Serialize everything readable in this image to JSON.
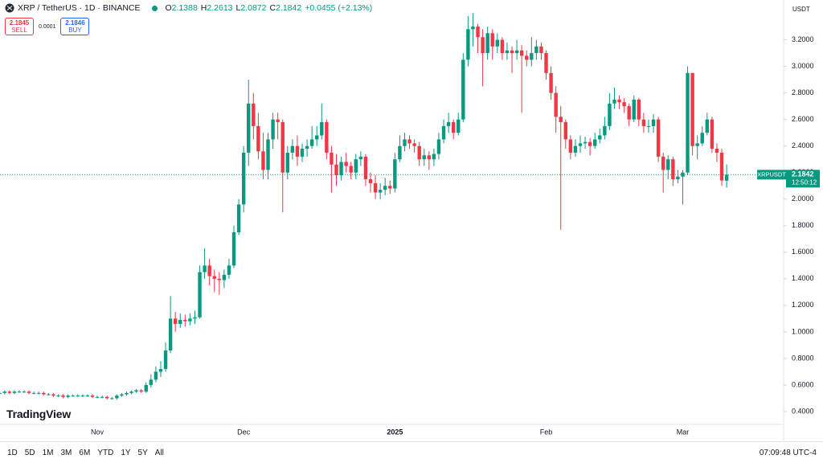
{
  "header": {
    "symbol": "XRP / TetherUS · 1D · BINANCE",
    "ohlc_labels": [
      "O",
      "H",
      "L",
      "C"
    ],
    "change": "+0.0455 (+2.13%)",
    "sell_price": 2.1845,
    "sell_label": "SELL",
    "spread": 0.0001,
    "buy_price": 2.1846,
    "buy_label": "BUY",
    "currency": "USDT"
  },
  "chart_data": {
    "type": "candlestick",
    "up_color": "#089981",
    "down_color": "#f23645",
    "categories": [
      null,
      null,
      null,
      null,
      null,
      null,
      null,
      null,
      null,
      null,
      null,
      null,
      null,
      null,
      null,
      null,
      null,
      null,
      null,
      null,
      null,
      "Nov",
      null,
      null,
      null,
      null,
      null,
      null,
      null,
      null,
      null,
      null,
      null,
      null,
      null,
      null,
      null,
      null,
      null,
      null,
      null,
      null,
      null,
      null,
      null,
      null,
      null,
      null,
      null,
      null,
      null,
      "Dec",
      null,
      null,
      null,
      null,
      null,
      null,
      null,
      null,
      null,
      null,
      null,
      null,
      null,
      null,
      null,
      null,
      null,
      null,
      null,
      null,
      null,
      null,
      null,
      null,
      null,
      null,
      null,
      null,
      null,
      null,
      "2025",
      null,
      null,
      null,
      null,
      null,
      null,
      null,
      null,
      null,
      null,
      null,
      null,
      null,
      null,
      null,
      null,
      null,
      null,
      null,
      null,
      null,
      null,
      null,
      null,
      null,
      null,
      null,
      null,
      null,
      null,
      "Feb",
      null,
      null,
      null,
      null,
      null,
      null,
      null,
      null,
      null,
      null,
      null,
      null,
      null,
      null,
      null,
      null,
      null,
      null,
      null,
      null,
      null,
      null,
      null,
      null,
      null,
      null,
      null,
      "Mar",
      null,
      null,
      null,
      null,
      null,
      null,
      null,
      null,
      null
    ],
    "open": [
      0.54,
      0.54,
      0.54,
      0.55,
      0.54,
      0.55,
      0.55,
      0.55,
      0.54,
      0.54,
      0.54,
      0.53,
      0.53,
      0.52,
      0.52,
      0.51,
      0.52,
      0.52,
      0.52,
      0.52,
      0.52,
      0.51,
      0.51,
      0.51,
      0.5,
      0.5,
      0.52,
      0.53,
      0.54,
      0.55,
      0.56,
      0.55,
      0.6,
      0.64,
      0.7,
      0.72,
      0.86,
      1.1,
      1.06,
      1.09,
      1.08,
      1.1,
      1.11,
      1.45,
      1.5,
      1.42,
      1.4,
      1.39,
      1.43,
      1.5,
      1.75,
      1.96,
      2.35,
      2.72,
      2.55,
      2.36,
      2.22,
      2.45,
      2.6,
      2.58,
      2.2,
      2.35,
      2.4,
      2.32,
      2.38,
      2.4,
      2.45,
      2.48,
      2.58,
      2.35,
      2.26,
      2.18,
      2.28,
      2.25,
      2.2,
      2.3,
      2.32,
      2.15,
      2.12,
      2.05,
      2.07,
      2.1,
      2.08,
      2.3,
      2.4,
      2.45,
      2.42,
      2.4,
      2.3,
      2.33,
      2.3,
      2.34,
      2.45,
      2.55,
      2.58,
      2.5,
      2.6,
      3.05,
      3.28,
      3.3,
      3.22,
      3.1,
      3.25,
      3.15,
      3.2,
      3.1,
      3.12,
      3.1,
      3.12,
      3.08,
      3.05,
      3.1,
      3.15,
      3.1,
      2.95,
      2.8,
      2.62,
      2.58,
      2.45,
      2.35,
      2.4,
      2.42,
      2.43,
      2.4,
      2.45,
      2.48,
      2.55,
      2.72,
      2.75,
      2.73,
      2.7,
      2.6,
      2.75,
      2.6,
      2.55,
      2.55,
      2.6,
      2.32,
      2.22,
      2.3,
      2.15,
      2.17,
      2.2,
      2.95,
      2.4,
      2.42,
      2.5,
      2.6,
      2.38,
      2.35,
      2.1388
    ],
    "high": [
      0.55,
      0.55,
      0.56,
      0.56,
      0.56,
      0.56,
      0.56,
      0.56,
      0.55,
      0.55,
      0.55,
      0.54,
      0.54,
      0.53,
      0.53,
      0.53,
      0.53,
      0.53,
      0.53,
      0.53,
      0.53,
      0.52,
      0.52,
      0.52,
      0.51,
      0.53,
      0.54,
      0.55,
      0.56,
      0.57,
      0.57,
      0.62,
      0.68,
      0.74,
      0.78,
      0.92,
      1.27,
      1.15,
      1.14,
      1.13,
      1.14,
      1.16,
      1.5,
      1.63,
      1.55,
      1.47,
      1.45,
      1.47,
      1.55,
      1.8,
      2.0,
      2.4,
      2.9,
      2.8,
      2.65,
      2.5,
      2.5,
      2.65,
      2.65,
      2.6,
      2.4,
      2.45,
      2.48,
      2.42,
      2.45,
      2.55,
      2.55,
      2.72,
      2.6,
      2.4,
      2.34,
      2.32,
      2.35,
      2.28,
      2.34,
      2.36,
      2.34,
      2.2,
      2.18,
      2.12,
      2.16,
      2.14,
      2.35,
      2.48,
      2.5,
      2.48,
      2.45,
      2.43,
      2.38,
      2.36,
      2.38,
      2.5,
      2.6,
      2.65,
      2.6,
      2.65,
      3.1,
      3.38,
      3.4,
      3.32,
      3.28,
      3.3,
      3.28,
      3.25,
      3.22,
      3.18,
      3.15,
      3.2,
      3.16,
      3.12,
      3.22,
      3.2,
      3.18,
      3.12,
      3.0,
      2.85,
      2.7,
      2.6,
      2.48,
      2.45,
      2.48,
      2.47,
      2.46,
      2.5,
      2.53,
      2.62,
      2.8,
      2.84,
      2.78,
      2.76,
      2.72,
      2.78,
      2.76,
      2.65,
      2.6,
      2.64,
      2.62,
      2.35,
      2.33,
      2.32,
      2.22,
      2.22,
      3.0,
      2.95,
      2.48,
      2.55,
      2.65,
      2.62,
      2.42,
      2.38,
      2.2613
    ],
    "low": [
      0.53,
      0.53,
      0.53,
      0.53,
      0.53,
      0.54,
      0.54,
      0.53,
      0.53,
      0.53,
      0.52,
      0.52,
      0.51,
      0.51,
      0.5,
      0.5,
      0.51,
      0.51,
      0.51,
      0.51,
      0.5,
      0.5,
      0.5,
      0.49,
      0.49,
      0.49,
      0.51,
      0.52,
      0.53,
      0.54,
      0.54,
      0.54,
      0.58,
      0.62,
      0.66,
      0.7,
      0.84,
      1.0,
      1.03,
      1.04,
      1.05,
      1.06,
      1.1,
      1.4,
      1.35,
      1.3,
      1.28,
      1.33,
      1.4,
      1.48,
      1.73,
      1.9,
      2.25,
      2.45,
      2.3,
      2.15,
      2.15,
      2.38,
      2.45,
      1.9,
      2.15,
      2.3,
      2.25,
      2.28,
      2.32,
      2.38,
      2.4,
      2.45,
      2.3,
      2.05,
      2.1,
      2.14,
      2.2,
      2.15,
      2.15,
      2.25,
      2.1,
      2.05,
      2.0,
      2.0,
      2.03,
      2.04,
      2.05,
      2.28,
      2.36,
      2.38,
      2.35,
      2.25,
      2.25,
      2.22,
      2.25,
      2.3,
      2.42,
      2.5,
      2.45,
      2.48,
      2.58,
      3.0,
      3.15,
      3.1,
      2.85,
      3.05,
      3.05,
      3.1,
      3.05,
      3.05,
      2.95,
      3.05,
      2.65,
      3.0,
      3.0,
      3.05,
      3.05,
      2.9,
      2.75,
      2.5,
      1.77,
      2.38,
      2.3,
      2.32,
      2.35,
      2.38,
      2.33,
      2.38,
      2.42,
      2.45,
      2.52,
      2.68,
      2.68,
      2.65,
      2.55,
      2.58,
      2.55,
      2.5,
      2.5,
      2.5,
      2.28,
      2.05,
      2.15,
      2.1,
      2.12,
      1.96,
      2.18,
      2.33,
      2.3,
      2.4,
      2.48,
      2.35,
      2.28,
      2.1,
      2.0872
    ],
    "close": [
      0.54,
      0.54,
      0.55,
      0.54,
      0.55,
      0.55,
      0.55,
      0.54,
      0.54,
      0.54,
      0.53,
      0.53,
      0.52,
      0.52,
      0.51,
      0.52,
      0.52,
      0.52,
      0.52,
      0.52,
      0.51,
      0.51,
      0.51,
      0.5,
      0.5,
      0.52,
      0.53,
      0.54,
      0.55,
      0.56,
      0.55,
      0.6,
      0.64,
      0.7,
      0.72,
      0.86,
      1.1,
      1.06,
      1.09,
      1.08,
      1.1,
      1.11,
      1.45,
      1.5,
      1.42,
      1.4,
      1.39,
      1.43,
      1.5,
      1.75,
      1.96,
      2.35,
      2.72,
      2.55,
      2.36,
      2.22,
      2.45,
      2.6,
      2.58,
      2.2,
      2.35,
      2.4,
      2.32,
      2.38,
      2.4,
      2.45,
      2.48,
      2.58,
      2.35,
      2.26,
      2.18,
      2.28,
      2.25,
      2.2,
      2.3,
      2.32,
      2.15,
      2.12,
      2.05,
      2.07,
      2.1,
      2.08,
      2.3,
      2.4,
      2.45,
      2.42,
      2.4,
      2.3,
      2.33,
      2.3,
      2.34,
      2.45,
      2.55,
      2.58,
      2.5,
      2.6,
      3.05,
      3.28,
      3.3,
      3.22,
      3.1,
      3.25,
      3.15,
      3.2,
      3.1,
      3.12,
      3.1,
      3.12,
      3.08,
      3.05,
      3.1,
      3.15,
      3.1,
      2.95,
      2.8,
      2.62,
      2.58,
      2.45,
      2.35,
      2.4,
      2.42,
      2.43,
      2.4,
      2.45,
      2.48,
      2.55,
      2.72,
      2.75,
      2.73,
      2.7,
      2.6,
      2.75,
      2.6,
      2.55,
      2.55,
      2.6,
      2.32,
      2.22,
      2.3,
      2.15,
      2.17,
      2.2,
      2.95,
      2.4,
      2.42,
      2.5,
      2.6,
      2.38,
      2.35,
      2.14,
      2.1842
    ],
    "ylim": [
      0.2,
      3.5
    ],
    "yticks": [
      {
        "value": 0.4,
        "label": "0.4000"
      },
      {
        "value": 0.6,
        "label": "0.6000"
      },
      {
        "value": 0.8,
        "label": "0.8000"
      },
      {
        "value": 1.0,
        "label": "1.0000"
      },
      {
        "value": 1.2,
        "label": "1.2000"
      },
      {
        "value": 1.4,
        "label": "1.4000"
      },
      {
        "value": 1.6,
        "label": "1.6000"
      },
      {
        "value": 1.8,
        "label": "1.8000"
      },
      {
        "value": 2.0,
        "label": "2.0000"
      },
      {
        "value": 2.2,
        "label": "2.2000"
      },
      {
        "value": 2.4,
        "label": "2.4000"
      },
      {
        "value": 2.6,
        "label": "2.6000"
      },
      {
        "value": 2.8,
        "label": "2.8000"
      },
      {
        "value": 3.0,
        "label": "3.0000"
      },
      {
        "value": 3.2,
        "label": "3.2000"
      }
    ],
    "last_price_label": {
      "symbol": "XRPUSDT",
      "countdown": "12:50:12"
    }
  },
  "footer": {
    "logo": "TradingView",
    "ranges": [
      "1D",
      "5D",
      "1M",
      "3M",
      "6M",
      "YTD",
      "1Y",
      "5Y",
      "All"
    ],
    "clock": "07:09:48 UTC-4"
  }
}
